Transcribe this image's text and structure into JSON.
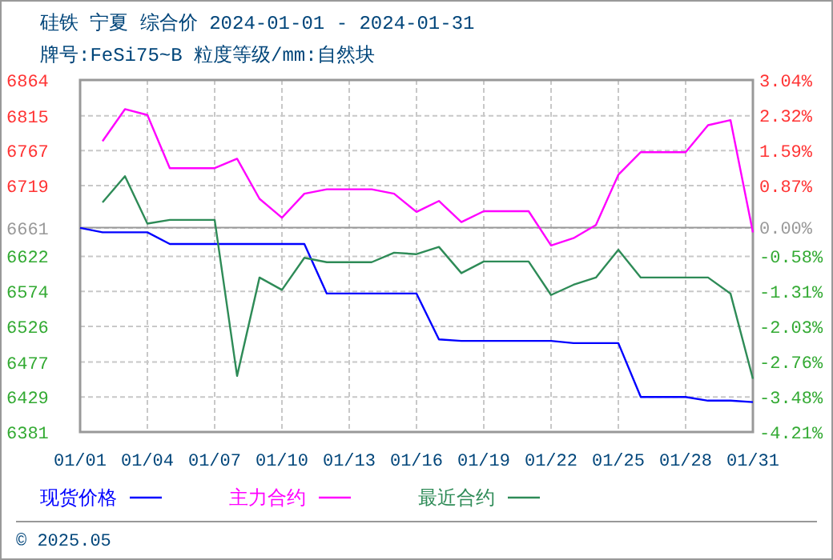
{
  "chart_data": {
    "type": "line",
    "title": "硅铁 宁夏 综合价 2024-01-01 - 2024-01-31",
    "subtitle": "牌号:FeSi75~B 粒度等级/mm:自然块",
    "x": [
      "2024-01-01",
      "2024-01-02",
      "2024-01-03",
      "2024-01-04",
      "2024-01-05",
      "2024-01-06",
      "2024-01-07",
      "2024-01-08",
      "2024-01-09",
      "2024-01-10",
      "2024-01-11",
      "2024-01-12",
      "2024-01-13",
      "2024-01-14",
      "2024-01-15",
      "2024-01-16",
      "2024-01-17",
      "2024-01-18",
      "2024-01-19",
      "2024-01-20",
      "2024-01-21",
      "2024-01-22",
      "2024-01-23",
      "2024-01-24",
      "2024-01-25",
      "2024-01-26",
      "2024-01-27",
      "2024-01-28",
      "2024-01-29",
      "2024-01-30",
      "2024-01-31"
    ],
    "series": [
      {
        "name": "现货价格",
        "color": "#0000ff",
        "values": [
          6661,
          6655,
          6655,
          6655,
          6639,
          6639,
          6639,
          6639,
          6639,
          6639,
          6639,
          6571,
          6571,
          6571,
          6571,
          6571,
          6508,
          6506,
          6506,
          6506,
          6506,
          6506,
          6503,
          6503,
          6503,
          6429,
          6429,
          6429,
          6424,
          6424,
          6422
        ]
      },
      {
        "name": "主力合约",
        "color": "#ff00ff",
        "values": [
          null,
          6780,
          6824,
          6816,
          6743,
          6743,
          6743,
          6756,
          6701,
          6675,
          6708,
          6714,
          6714,
          6714,
          6708,
          6683,
          6698,
          6669,
          6684,
          6684,
          6684,
          6637,
          6647,
          6665,
          6734,
          6765,
          6765,
          6765,
          6802,
          6809,
          6655
        ]
      },
      {
        "name": "最近合约",
        "color": "#2e8b57",
        "values": [
          null,
          6696,
          6732,
          6667,
          6672,
          6672,
          6672,
          6458,
          6593,
          6576,
          6620,
          6614,
          6614,
          6614,
          6627,
          6625,
          6635,
          6599,
          6615,
          6615,
          6615,
          6569,
          6583,
          6593,
          6631,
          6593,
          6593,
          6593,
          6593,
          6571,
          6454
        ]
      }
    ],
    "xlim": [
      "2024-01-01",
      "2024-01-31"
    ],
    "xticks": [
      {
        "value": "2024-01-01",
        "label": "01/01"
      },
      {
        "value": "2024-01-04",
        "label": "01/04"
      },
      {
        "value": "2024-01-07",
        "label": "01/07"
      },
      {
        "value": "2024-01-10",
        "label": "01/10"
      },
      {
        "value": "2024-01-13",
        "label": "01/13"
      },
      {
        "value": "2024-01-16",
        "label": "01/16"
      },
      {
        "value": "2024-01-19",
        "label": "01/19"
      },
      {
        "value": "2024-01-22",
        "label": "01/22"
      },
      {
        "value": "2024-01-25",
        "label": "01/25"
      },
      {
        "value": "2024-01-28",
        "label": "01/28"
      },
      {
        "value": "2024-01-31",
        "label": "01/31"
      }
    ],
    "ylim": [
      6381,
      6864
    ],
    "yticks": [
      6381,
      6429,
      6477,
      6526,
      6574,
      6622,
      6661,
      6719,
      6767,
      6815,
      6864
    ],
    "y2lim": [
      -4.21,
      3.04
    ],
    "y2ticks": [
      {
        "value": -4.21,
        "label": "-4.21%"
      },
      {
        "value": -3.48,
        "label": "-3.48%"
      },
      {
        "value": -2.76,
        "label": "-2.76%"
      },
      {
        "value": -2.03,
        "label": "-2.03%"
      },
      {
        "value": -1.31,
        "label": "-1.31%"
      },
      {
        "value": -0.58,
        "label": "-0.58%"
      },
      {
        "value": 0,
        "label": "0.00%"
      },
      {
        "value": 0.87,
        "label": "0.87%"
      },
      {
        "value": 1.59,
        "label": "1.59%"
      },
      {
        "value": 2.32,
        "label": "2.32%"
      },
      {
        "value": 3.04,
        "label": "3.04%"
      }
    ],
    "ref_lines": [
      {
        "axis": "y2",
        "value": 0,
        "color": "#999999"
      }
    ],
    "grid": true,
    "legend": "bottom",
    "marker": "none",
    "line_style": "solid",
    "annotations": [
      "© 2025.05"
    ]
  }
}
